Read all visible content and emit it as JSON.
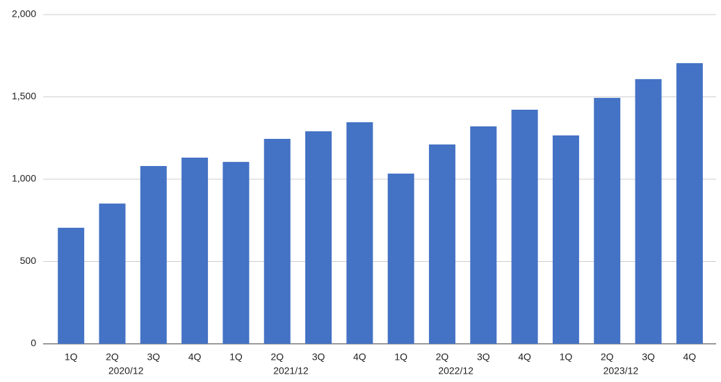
{
  "chart_data": {
    "type": "bar",
    "category_groups": [
      {
        "name": "2020/12",
        "categories": [
          "1Q",
          "2Q",
          "3Q",
          "4Q"
        ]
      },
      {
        "name": "2021/12",
        "categories": [
          "1Q",
          "2Q",
          "3Q",
          "4Q"
        ]
      },
      {
        "name": "2022/12",
        "categories": [
          "1Q",
          "2Q",
          "3Q",
          "4Q"
        ]
      },
      {
        "name": "2023/12",
        "categories": [
          "1Q",
          "2Q",
          "3Q",
          "4Q"
        ]
      }
    ],
    "values": [
      705,
      852,
      1080,
      1131,
      1105,
      1245,
      1291,
      1346,
      1034,
      1211,
      1321,
      1422,
      1266,
      1494,
      1608,
      1705
    ],
    "color": "#4472c4",
    "ylim": [
      0,
      2000
    ],
    "yticks": [
      0,
      500,
      {
        "value": 1000,
        "label": "1,000"
      },
      {
        "value": 1500,
        "label": "1,500"
      },
      {
        "value": 2000,
        "label": "2,000"
      }
    ],
    "grid": true
  }
}
